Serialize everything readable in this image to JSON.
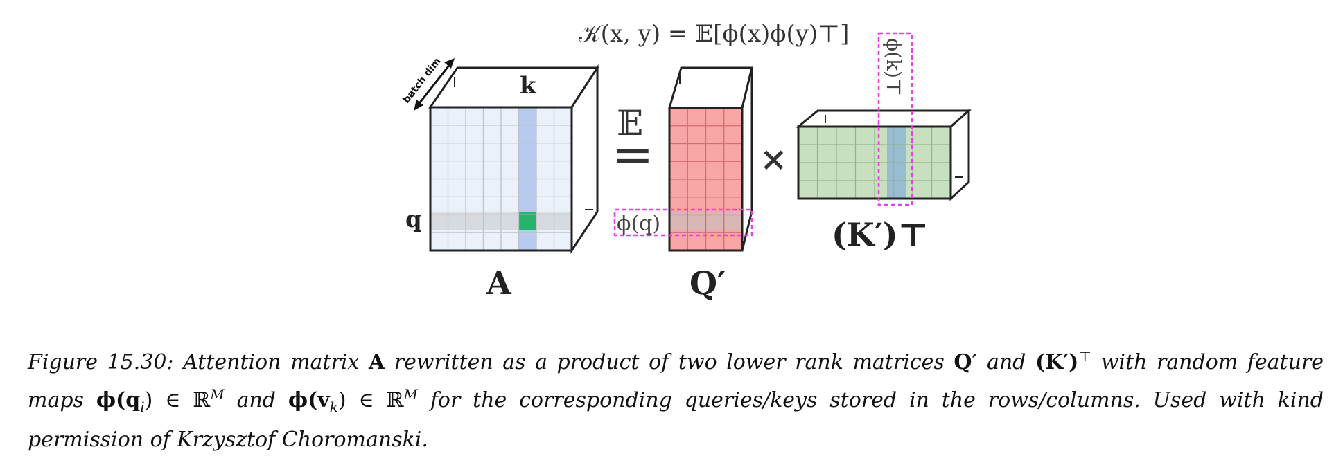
{
  "figure": {
    "top_formula": "𝒦(x, y) = 𝔼[ϕ(x)ϕ(y)⊤]",
    "batch_dim_label": "batch dim",
    "label_k": "k",
    "label_q": "q",
    "label_A": "A",
    "expectation_symbol": "𝔼",
    "equals_symbol": "=",
    "phi_q_label": "ϕ(q)",
    "label_Q_prime": "Q′",
    "times_symbol": "✕",
    "phi_k_T_label": "ϕ(k)⊤",
    "label_K_prime_T": "(K′)⊤",
    "colors": {
      "A_face": "#eaf1f9",
      "A_column": "#b7cbee",
      "A_row": "#d7dbe0",
      "A_cell": "#27b46a",
      "Q_face": "#f7a5a5",
      "Q_row": "#d9b7b4",
      "K_face": "#c9e0c0",
      "K_column": "#98bcd2",
      "highlight_box": "#ea3ee8"
    }
  },
  "caption": {
    "label": "Figure 15.30:",
    "p1": "Attention matrix",
    "A": "A",
    "p2": "rewritten as a product of two lower rank matrices",
    "Qp": "Q′",
    "p3": "and",
    "KpT": "(K′)",
    "T": "⊤",
    "p4": "with random feature maps",
    "phi_q": "ϕ(q",
    "sub_i": "i",
    "in_R1": ") ∈ ℝ",
    "M1": "M",
    "p5": "and",
    "phi_v": "ϕ(v",
    "sub_k": "k",
    "in_R2": ") ∈ ℝ",
    "M2": "M",
    "p6": "for the corresponding queries/keys stored in the rows/columns. Used with kind permission of Krzysztof Choromanski."
  }
}
